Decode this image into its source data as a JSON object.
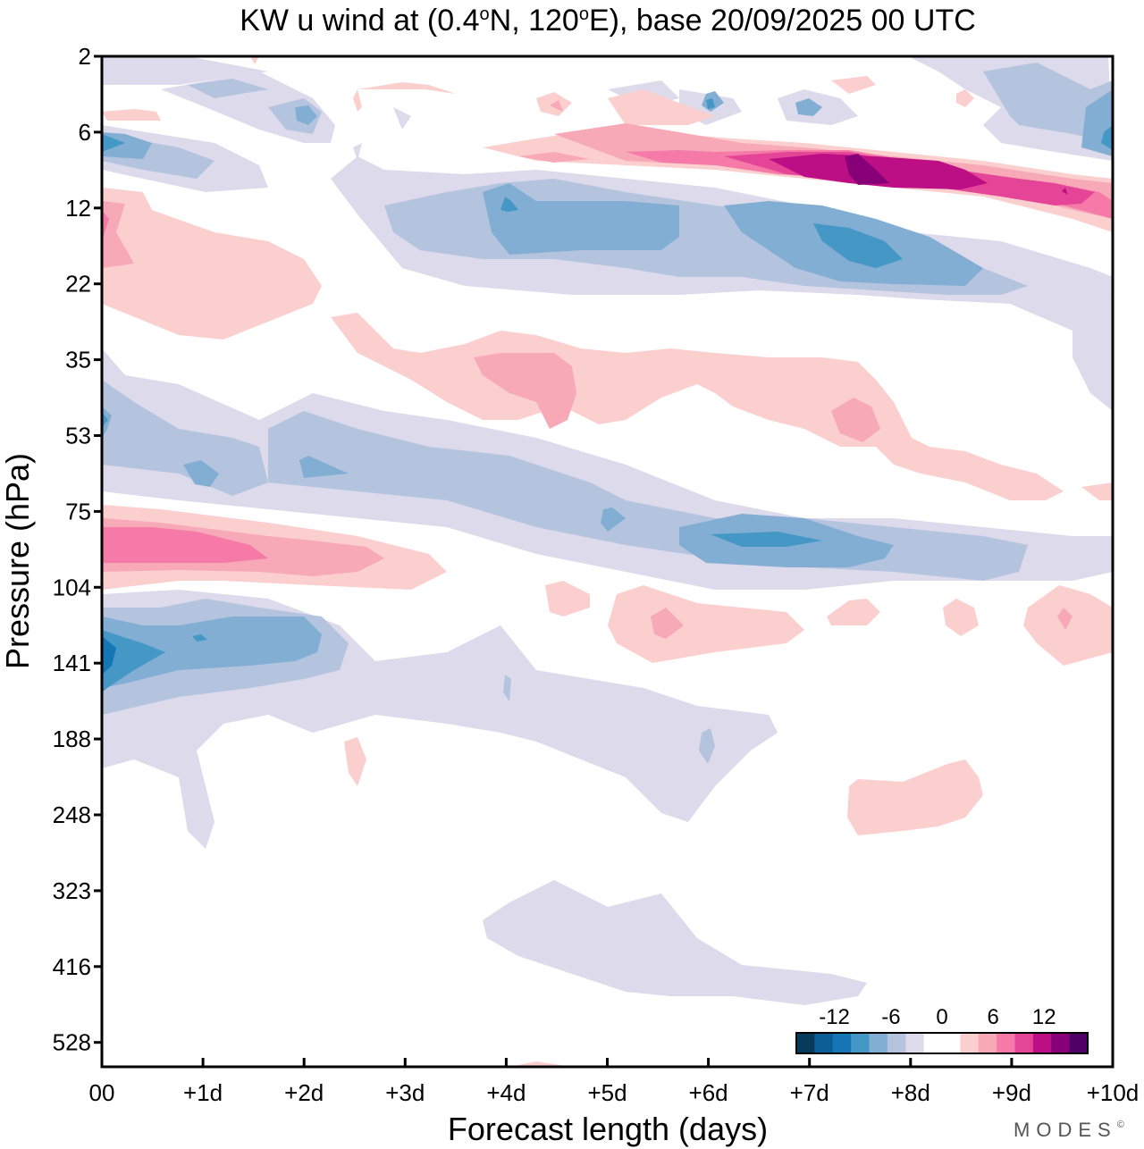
{
  "chart_data": {
    "type": "heatmap",
    "subtype": "filled-contour",
    "title": "KW u wind at (0.4°N, 120°E),  base 20/09/2025  00 UTC",
    "title_parts": {
      "prefix": "KW u wind at (0.4",
      "deg1": "o",
      "mid": "N, 120",
      "deg2": "o",
      "suffix": "E),  base 20/09/2025  00 UTC"
    },
    "xlabel": "Forecast length (days)",
    "ylabel": "Pressure (hPa)",
    "x_ticks": [
      "00",
      "+1d",
      "+2d",
      "+3d",
      "+4d",
      "+5d",
      "+6d",
      "+7d",
      "+8d",
      "+9d",
      "+10d"
    ],
    "xlim_days": [
      0,
      10
    ],
    "y_ticks": [
      "2",
      "6",
      "12",
      "22",
      "35",
      "53",
      "75",
      "104",
      "141",
      "188",
      "248",
      "323",
      "416",
      "528"
    ],
    "y_axis": "pressure levels, top = 2 hPa, bottom ≈ 600 hPa, evenly spaced tick levels",
    "colorbar": {
      "labels": [
        "-12",
        "-6",
        "0",
        "6",
        "12"
      ],
      "label_values": [
        -12,
        -6,
        0,
        6,
        12
      ],
      "levels": [
        -16,
        -14,
        -12,
        -10,
        -8,
        -6,
        -4,
        -2,
        2,
        4,
        6,
        8,
        10,
        12,
        14,
        16
      ],
      "colors": [
        "#073b5c",
        "#0b5f96",
        "#1576b5",
        "#4597c6",
        "#82aed3",
        "#b4c4df",
        "#dcdaeb",
        "#ffffff",
        "#fccfcf",
        "#f8a9b8",
        "#f57aa8",
        "#e54597",
        "#bc0f85",
        "#880077",
        "#4f0066"
      ],
      "position": "bottom-right"
    },
    "features": [
      {
        "name": "easterly-jet-upper-strat",
        "sign": "negative",
        "level_hPa": "12-22",
        "days": "3-9",
        "min_value": -10
      },
      {
        "name": "westerly-jet-upper-strat",
        "sign": "positive",
        "level_hPa": "6-12",
        "days": "4-10",
        "max_value": 14
      },
      {
        "name": "westerly-band-75-104hPa",
        "sign": "positive",
        "level_hPa": "75-104",
        "days": "0-3",
        "max_value": 8
      },
      {
        "name": "easterly-band-53-75hPa",
        "sign": "negative",
        "level_hPa": "53-104",
        "days": "0-10",
        "min_value": -8
      },
      {
        "name": "easterly-core-141hPa",
        "sign": "negative",
        "level_hPa": "104-188",
        "days": "0-2.5",
        "min_value": -12
      },
      {
        "name": "westerly-patch-35-53hPa",
        "sign": "positive",
        "level_hPa": "22-75",
        "days": "2.3-10",
        "max_value": 4
      },
      {
        "name": "westerly-upper-left",
        "sign": "positive",
        "level_hPa": "10-30",
        "days": "0-2.2",
        "max_value": 6
      }
    ]
  },
  "watermark": "MODES",
  "watermark_mark": "©"
}
